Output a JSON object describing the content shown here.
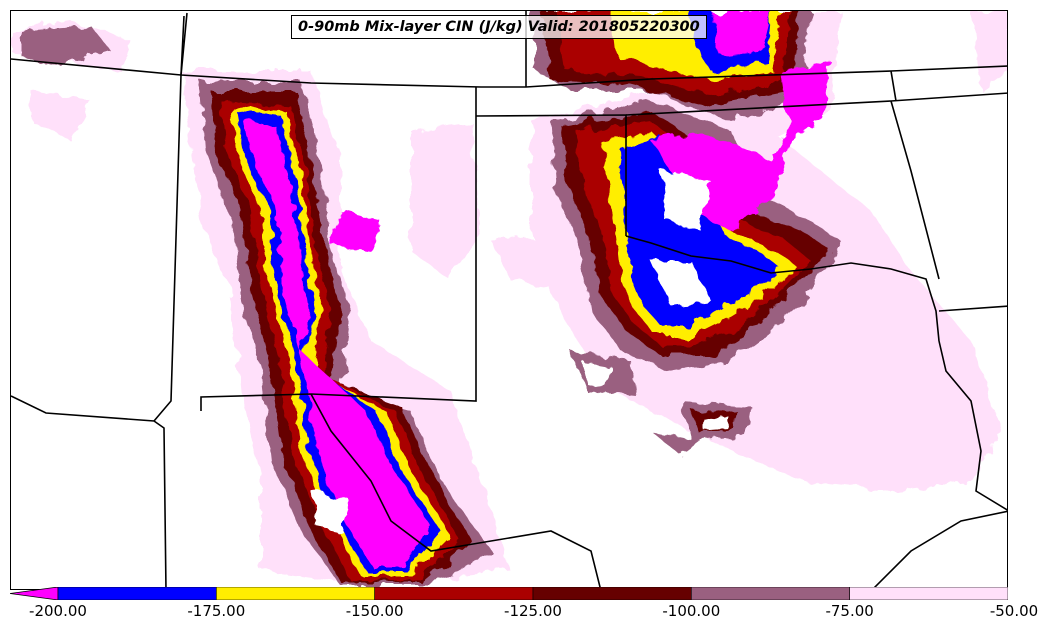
{
  "map": {
    "title": "0-90mb Mix-layer CIN (J/kg) Valid: 201805220300",
    "variable": "0-90mb Mix-layer CIN",
    "units": "J/kg",
    "valid_time": "201805220300"
  },
  "colorbar": {
    "ticks": [
      "-200.00",
      "-175.00",
      "-150.00",
      "-125.00",
      "-100.00",
      "-75.00",
      "-50.00"
    ],
    "levels": [
      -200,
      -175,
      -150,
      -125,
      -100,
      -75,
      -50
    ],
    "colors": [
      "#ff00ff",
      "#0000ff",
      "#ffee00",
      "#aa0000",
      "#660000",
      "#9a6080",
      "#ffe0fa"
    ],
    "extend": "min"
  }
}
